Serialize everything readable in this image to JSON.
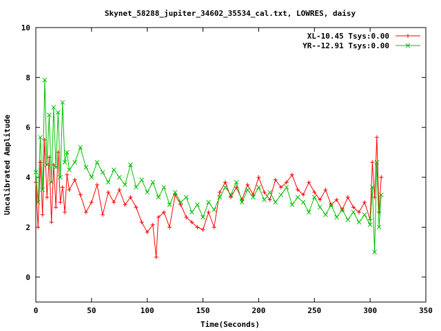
{
  "chart_data": {
    "type": "line",
    "title": "Skynet_58288_jupiter_34602_35534_cal.txt, LOWRES, daisy",
    "xlabel": "Time(Seconds)",
    "ylabel": "Uncalibrated Amplitude",
    "xlim": [
      0,
      350
    ],
    "ylim": [
      -1,
      10
    ],
    "xticks": [
      "0",
      "50",
      "100",
      "150",
      "200",
      "250",
      "300",
      "350"
    ],
    "xtick_values": [
      0,
      50,
      100,
      150,
      200,
      250,
      300,
      350
    ],
    "yticks": [
      "0",
      "2",
      "4",
      "6",
      "8",
      "10"
    ],
    "ytick_values": [
      0,
      2,
      4,
      6,
      8,
      10
    ],
    "grid": false,
    "legend_position": "top-right",
    "series": [
      {
        "name": "XL-10.45 Tsys:0.00",
        "color": "#ff0000",
        "marker": "plus",
        "x": [
          0,
          2,
          4,
          6,
          8,
          10,
          12,
          14,
          16,
          18,
          20,
          22,
          24,
          26,
          28,
          30,
          35,
          40,
          45,
          50,
          55,
          60,
          65,
          70,
          75,
          80,
          85,
          90,
          95,
          100,
          105,
          108,
          110,
          115,
          120,
          125,
          130,
          135,
          140,
          145,
          150,
          155,
          160,
          165,
          170,
          175,
          180,
          185,
          190,
          195,
          200,
          205,
          210,
          215,
          220,
          225,
          230,
          235,
          240,
          245,
          250,
          255,
          260,
          265,
          270,
          275,
          280,
          285,
          290,
          295,
          300,
          302,
          304,
          306,
          308,
          310
        ],
        "y": [
          3.8,
          2.0,
          4.6,
          2.5,
          5.5,
          3.2,
          4.8,
          2.2,
          4.5,
          2.8,
          5.0,
          3.0,
          3.6,
          2.6,
          4.1,
          3.5,
          3.9,
          3.3,
          2.6,
          3.0,
          3.7,
          2.5,
          3.4,
          3.0,
          3.5,
          2.9,
          3.2,
          2.8,
          2.2,
          1.8,
          2.1,
          0.8,
          2.4,
          2.6,
          2.0,
          3.3,
          2.9,
          2.4,
          2.2,
          2.0,
          1.9,
          2.6,
          2.0,
          3.4,
          3.8,
          3.2,
          3.6,
          3.1,
          3.7,
          3.3,
          4.0,
          3.4,
          3.1,
          3.9,
          3.6,
          3.8,
          4.1,
          3.5,
          3.3,
          3.8,
          3.4,
          3.1,
          3.5,
          2.9,
          3.1,
          2.7,
          3.2,
          2.8,
          2.6,
          3.0,
          2.3,
          4.6,
          3.2,
          5.6,
          2.6,
          4.0
        ]
      },
      {
        "name": "YR--12.91 Tsys:0.00",
        "color": "#00c000",
        "marker": "cross",
        "x": [
          0,
          2,
          4,
          6,
          8,
          10,
          12,
          14,
          16,
          18,
          20,
          22,
          24,
          26,
          28,
          30,
          35,
          40,
          45,
          50,
          55,
          60,
          65,
          70,
          75,
          80,
          85,
          90,
          95,
          100,
          105,
          110,
          115,
          120,
          125,
          130,
          135,
          140,
          145,
          150,
          155,
          160,
          165,
          170,
          175,
          180,
          185,
          190,
          195,
          200,
          205,
          210,
          215,
          220,
          225,
          230,
          235,
          240,
          245,
          250,
          255,
          260,
          265,
          270,
          275,
          280,
          285,
          290,
          295,
          300,
          302,
          304,
          306,
          308,
          310
        ],
        "y": [
          4.2,
          3.0,
          5.6,
          3.5,
          7.9,
          4.5,
          6.5,
          3.8,
          6.8,
          4.4,
          6.6,
          4.0,
          7.0,
          4.6,
          5.0,
          4.3,
          4.6,
          5.2,
          4.4,
          4.0,
          4.6,
          4.2,
          3.8,
          4.3,
          4.0,
          3.7,
          4.5,
          3.6,
          3.9,
          3.4,
          3.8,
          3.2,
          3.6,
          2.9,
          3.4,
          3.0,
          3.2,
          2.6,
          2.9,
          2.4,
          3.0,
          2.7,
          3.2,
          3.6,
          3.3,
          3.8,
          3.0,
          3.5,
          3.2,
          3.6,
          3.1,
          3.4,
          3.0,
          3.3,
          3.6,
          2.9,
          3.2,
          3.0,
          2.6,
          3.2,
          2.8,
          2.5,
          2.9,
          2.4,
          2.7,
          2.3,
          2.6,
          2.2,
          2.5,
          2.1,
          3.6,
          1.0,
          4.6,
          2.0,
          3.3
        ]
      }
    ]
  }
}
